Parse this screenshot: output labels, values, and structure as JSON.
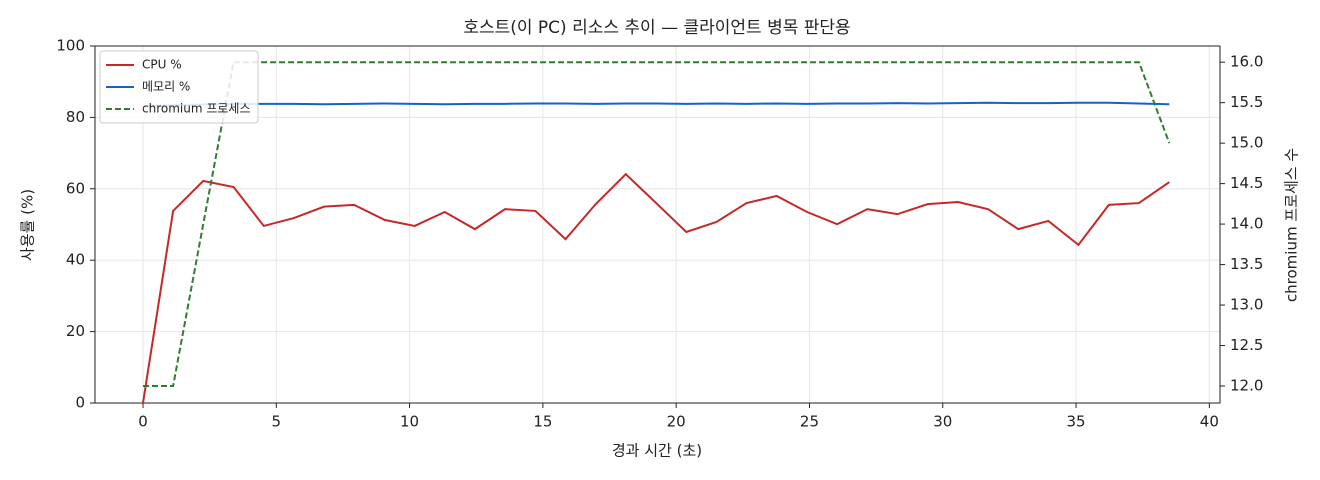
{
  "chart_data": {
    "type": "line",
    "title": "호스트(이 PC) 리소스 추이 — 클라이언트 병목 판단용",
    "x_label": "경과 시간 (초)",
    "y_label": "사용률 (%)",
    "y2_label": "chromium 프로세스 수",
    "x": [
      0,
      1.13,
      2.26,
      3.4,
      4.53,
      5.66,
      6.79,
      7.92,
      9.06,
      10.19,
      11.32,
      12.45,
      13.58,
      14.72,
      15.85,
      16.98,
      18.11,
      19.25,
      20.38,
      21.51,
      22.64,
      23.77,
      24.91,
      26.04,
      27.17,
      28.3,
      29.43,
      30.57,
      31.7,
      32.83,
      33.96,
      35.09,
      36.23,
      37.36,
      38.5
    ],
    "series": [
      {
        "name": "CPU %",
        "color": "#c62828",
        "axis": "y",
        "linestyle": "solid",
        "values": [
          0,
          53.8,
          62.2,
          60.5,
          49.6,
          51.8,
          55,
          55.5,
          51.3,
          49.6,
          53.5,
          48.7,
          54.3,
          53.8,
          45.9,
          55.7,
          64.1,
          56,
          47.9,
          50.7,
          56,
          58,
          53.5,
          50.1,
          54.3,
          52.9,
          55.7,
          56.3,
          54.3,
          48.7,
          51,
          44.3,
          55.5,
          56,
          61.9
        ]
      },
      {
        "name": "메모리 %",
        "color": "#1565c0",
        "axis": "y",
        "linestyle": "solid",
        "values": [
          83.2,
          83.4,
          83.6,
          83.8,
          83.8,
          83.8,
          83.7,
          83.8,
          83.9,
          83.8,
          83.7,
          83.8,
          83.8,
          83.9,
          83.9,
          83.8,
          83.9,
          83.9,
          83.8,
          83.9,
          83.8,
          83.9,
          83.8,
          83.9,
          83.9,
          84.0,
          83.9,
          84.0,
          84.1,
          84.0,
          84.0,
          84.1,
          84.1,
          83.9,
          83.7
        ]
      },
      {
        "name": "chromium 프로세스",
        "color": "#2e7d32",
        "axis": "y2",
        "linestyle": "dashed",
        "values": [
          12,
          12,
          14,
          16,
          16,
          16,
          16,
          16,
          16,
          16,
          16,
          16,
          16,
          16,
          16,
          16,
          16,
          16,
          16,
          16,
          16,
          16,
          16,
          16,
          16,
          16,
          16,
          16,
          16,
          16,
          16,
          16,
          16,
          16,
          15
        ]
      }
    ],
    "xlim": [
      -1.8,
      40.4
    ],
    "xticks": [
      0,
      5,
      10,
      15,
      20,
      25,
      30,
      35,
      40
    ],
    "ylim": [
      0,
      100
    ],
    "yticks": [
      0,
      20,
      40,
      60,
      80,
      100
    ],
    "y2lim": [
      11.79,
      16.2
    ],
    "y2ticks": [
      {
        "value": 12,
        "label": "12.0"
      },
      {
        "value": 12.5,
        "label": "12.5"
      },
      {
        "value": 13,
        "label": "13.0"
      },
      {
        "value": 13.5,
        "label": "13.5"
      },
      {
        "value": 14,
        "label": "14.0"
      },
      {
        "value": 14.5,
        "label": "14.5"
      },
      {
        "value": 15,
        "label": "15.0"
      },
      {
        "value": 15.5,
        "label": "15.5"
      },
      {
        "value": 16,
        "label": "16.0"
      }
    ],
    "grid": true,
    "legend": "upper-left"
  }
}
